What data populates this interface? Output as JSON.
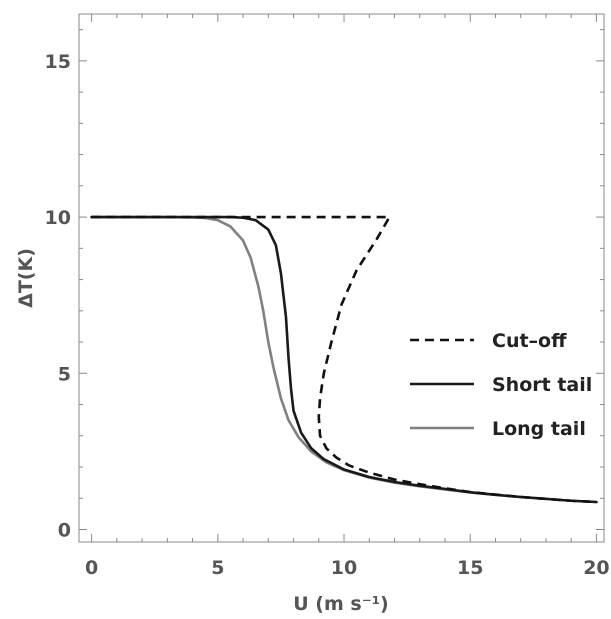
{
  "chart_data": {
    "type": "line",
    "xlabel": "U (m s⁻¹)",
    "ylabel": "ΔT(K)",
    "xlim": [
      -0.5,
      20.3
    ],
    "ylim": [
      -0.4,
      16.5
    ],
    "x_ticks": [
      "0",
      "5",
      "10",
      "15",
      "20"
    ],
    "y_ticks": [
      "0",
      "5",
      "10",
      "15"
    ],
    "grid": false,
    "legend_position": "right",
    "series": [
      {
        "name": "Cut–off",
        "color": "#111111",
        "dash": "dashed",
        "x": [
          0,
          4,
          5,
          6,
          7,
          8,
          9,
          10,
          11,
          11.8,
          11.3,
          10.5,
          9.9,
          9.5,
          9.2,
          9.05,
          9.0,
          9.05,
          9.3,
          9.7,
          10.2,
          11,
          12,
          13,
          14,
          15,
          16,
          17,
          18,
          19,
          20
        ],
        "y": [
          10,
          10,
          10,
          10,
          10,
          10,
          10,
          10,
          10,
          10,
          9.3,
          8.3,
          7.2,
          6.0,
          5.0,
          4.2,
          3.6,
          3.0,
          2.6,
          2.3,
          2.05,
          1.82,
          1.6,
          1.45,
          1.32,
          1.2,
          1.12,
          1.04,
          0.98,
          0.92,
          0.88
        ]
      },
      {
        "name": "Short tail",
        "color": "#1a1a1a",
        "dash": "solid",
        "x": [
          0,
          4,
          5,
          5.5,
          6,
          6.5,
          7,
          7.3,
          7.5,
          7.7,
          7.8,
          7.9,
          8.0,
          8.3,
          8.7,
          9.2,
          10,
          11,
          12,
          13,
          14,
          15,
          16,
          17,
          18,
          19,
          20
        ],
        "y": [
          10,
          10,
          10,
          10,
          9.98,
          9.9,
          9.6,
          9.1,
          8.2,
          6.8,
          5.5,
          4.5,
          3.8,
          3.1,
          2.6,
          2.25,
          1.92,
          1.68,
          1.52,
          1.4,
          1.3,
          1.19,
          1.11,
          1.04,
          0.98,
          0.92,
          0.88
        ]
      },
      {
        "name": "Long tail",
        "color": "#808080",
        "dash": "solid",
        "x": [
          0,
          3,
          4,
          4.5,
          5,
          5.5,
          6,
          6.3,
          6.6,
          6.8,
          7.0,
          7.2,
          7.5,
          7.8,
          8.2,
          8.7,
          9.3,
          10,
          11,
          12,
          13,
          14,
          15,
          16,
          17,
          18,
          19,
          20
        ],
        "y": [
          10,
          10,
          9.99,
          9.97,
          9.9,
          9.7,
          9.25,
          8.7,
          7.8,
          7.0,
          6.0,
          5.2,
          4.2,
          3.5,
          2.95,
          2.5,
          2.15,
          1.9,
          1.66,
          1.5,
          1.38,
          1.28,
          1.19,
          1.11,
          1.04,
          0.98,
          0.92,
          0.88
        ]
      }
    ]
  }
}
